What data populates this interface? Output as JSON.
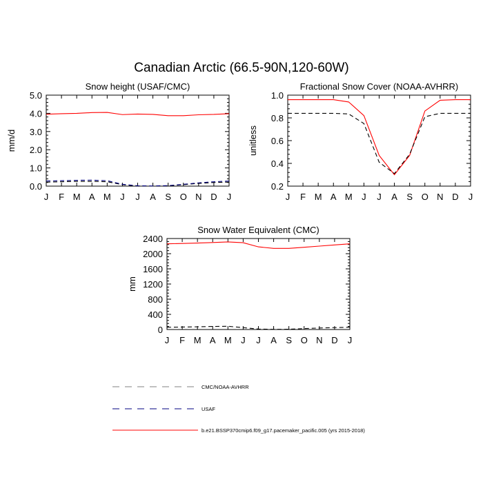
{
  "title": "Canadian Arctic (66.5-90N,120-60W)",
  "colors": {
    "model": "#ff0000",
    "obs": "#000000",
    "usaf": "#000080",
    "legend_gray": "#808080"
  },
  "chart_data": [
    {
      "type": "line",
      "title": "Snow height (USAF/CMC)",
      "ylabel": "mm/d",
      "xlabel": "",
      "x": [
        "J",
        "F",
        "M",
        "A",
        "M",
        "J",
        "J",
        "A",
        "S",
        "O",
        "N",
        "D",
        "J"
      ],
      "ylim": [
        0,
        5
      ],
      "yticks": [
        "0.0",
        "1.0",
        "2.0",
        "3.0",
        "4.0",
        "5.0"
      ],
      "ytick_values": [
        0,
        1,
        2,
        3,
        4,
        5
      ],
      "series": [
        {
          "name": "b.e21.BSSP370cmip6.f09_g17.pacemaker_pacific.005 (yrs 2015-2018)",
          "style": "solid",
          "color": "#ff0000",
          "values": [
            3.95,
            3.98,
            4.0,
            4.04,
            4.05,
            3.93,
            3.96,
            3.94,
            3.87,
            3.87,
            3.92,
            3.94,
            3.98
          ]
        },
        {
          "name": "CMC/NOAA-AVHRR",
          "style": "dashed",
          "color": "#000000",
          "values": [
            0.22,
            0.24,
            0.26,
            0.26,
            0.24,
            0.08,
            0.01,
            0.0,
            0.02,
            0.08,
            0.15,
            0.2,
            0.22
          ]
        },
        {
          "name": "USAF",
          "style": "dashed",
          "color": "#000080",
          "values": [
            0.28,
            0.3,
            0.32,
            0.33,
            0.3,
            0.1,
            0.02,
            0.01,
            0.03,
            0.1,
            0.18,
            0.24,
            0.28
          ]
        }
      ]
    },
    {
      "type": "line",
      "title": "Fractional Snow Cover (NOAA-AVHRR)",
      "ylabel": "unitless",
      "xlabel": "",
      "x": [
        "J",
        "F",
        "M",
        "A",
        "M",
        "J",
        "J",
        "A",
        "S",
        "O",
        "N",
        "D",
        "J"
      ],
      "ylim": [
        0.2,
        1.0
      ],
      "yticks": [
        "0.2",
        "0.4",
        "0.6",
        "0.8",
        "1.0"
      ],
      "ytick_values": [
        0.2,
        0.4,
        0.6,
        0.8,
        1.0
      ],
      "series": [
        {
          "name": "b.e21.BSSP370cmip6.f09_g17.pacemaker_pacific.005 (yrs 2015-2018)",
          "style": "solid",
          "color": "#ff0000",
          "values": [
            0.96,
            0.96,
            0.96,
            0.96,
            0.94,
            0.82,
            0.47,
            0.3,
            0.47,
            0.86,
            0.955,
            0.96,
            0.96
          ]
        },
        {
          "name": "CMC/NOAA-AVHRR",
          "style": "dashed",
          "color": "#000000",
          "values": [
            0.84,
            0.84,
            0.84,
            0.84,
            0.835,
            0.75,
            0.41,
            0.31,
            0.48,
            0.81,
            0.84,
            0.84,
            0.84
          ]
        }
      ]
    },
    {
      "type": "line",
      "title": "Snow Water Equivalent (CMC)",
      "ylabel": "mm",
      "xlabel": "",
      "x": [
        "J",
        "F",
        "M",
        "A",
        "M",
        "J",
        "J",
        "A",
        "S",
        "O",
        "N",
        "D",
        "J"
      ],
      "ylim": [
        0,
        2400
      ],
      "yticks": [
        "0",
        "400",
        "800",
        "1200",
        "1600",
        "2000",
        "2400"
      ],
      "ytick_values": [
        0,
        400,
        800,
        1200,
        1600,
        2000,
        2400
      ],
      "series": [
        {
          "name": "b.e21.BSSP370cmip6.f09_g17.pacemaker_pacific.005 (yrs 2015-2018)",
          "style": "solid",
          "color": "#ff0000",
          "values": [
            2260,
            2270,
            2280,
            2295,
            2310,
            2290,
            2180,
            2140,
            2140,
            2170,
            2200,
            2230,
            2260
          ]
        },
        {
          "name": "CMC/NOAA-AVHRR",
          "style": "dashed",
          "color": "#000000",
          "values": [
            60,
            65,
            72,
            80,
            85,
            50,
            12,
            5,
            8,
            25,
            40,
            50,
            60
          ]
        }
      ]
    }
  ],
  "legend": {
    "placement": "bottom-center",
    "entries": [
      {
        "label": "CMC/NOAA-AVHRR",
        "style": "dashed",
        "color": "#808080"
      },
      {
        "label": "USAF",
        "style": "dashed",
        "color": "#000080"
      },
      {
        "label": "b.e21.BSSP370cmip6.f09_g17.pacemaker_pacific.005 (yrs 2015-2018)",
        "style": "solid",
        "color": "#ff0000"
      }
    ]
  }
}
